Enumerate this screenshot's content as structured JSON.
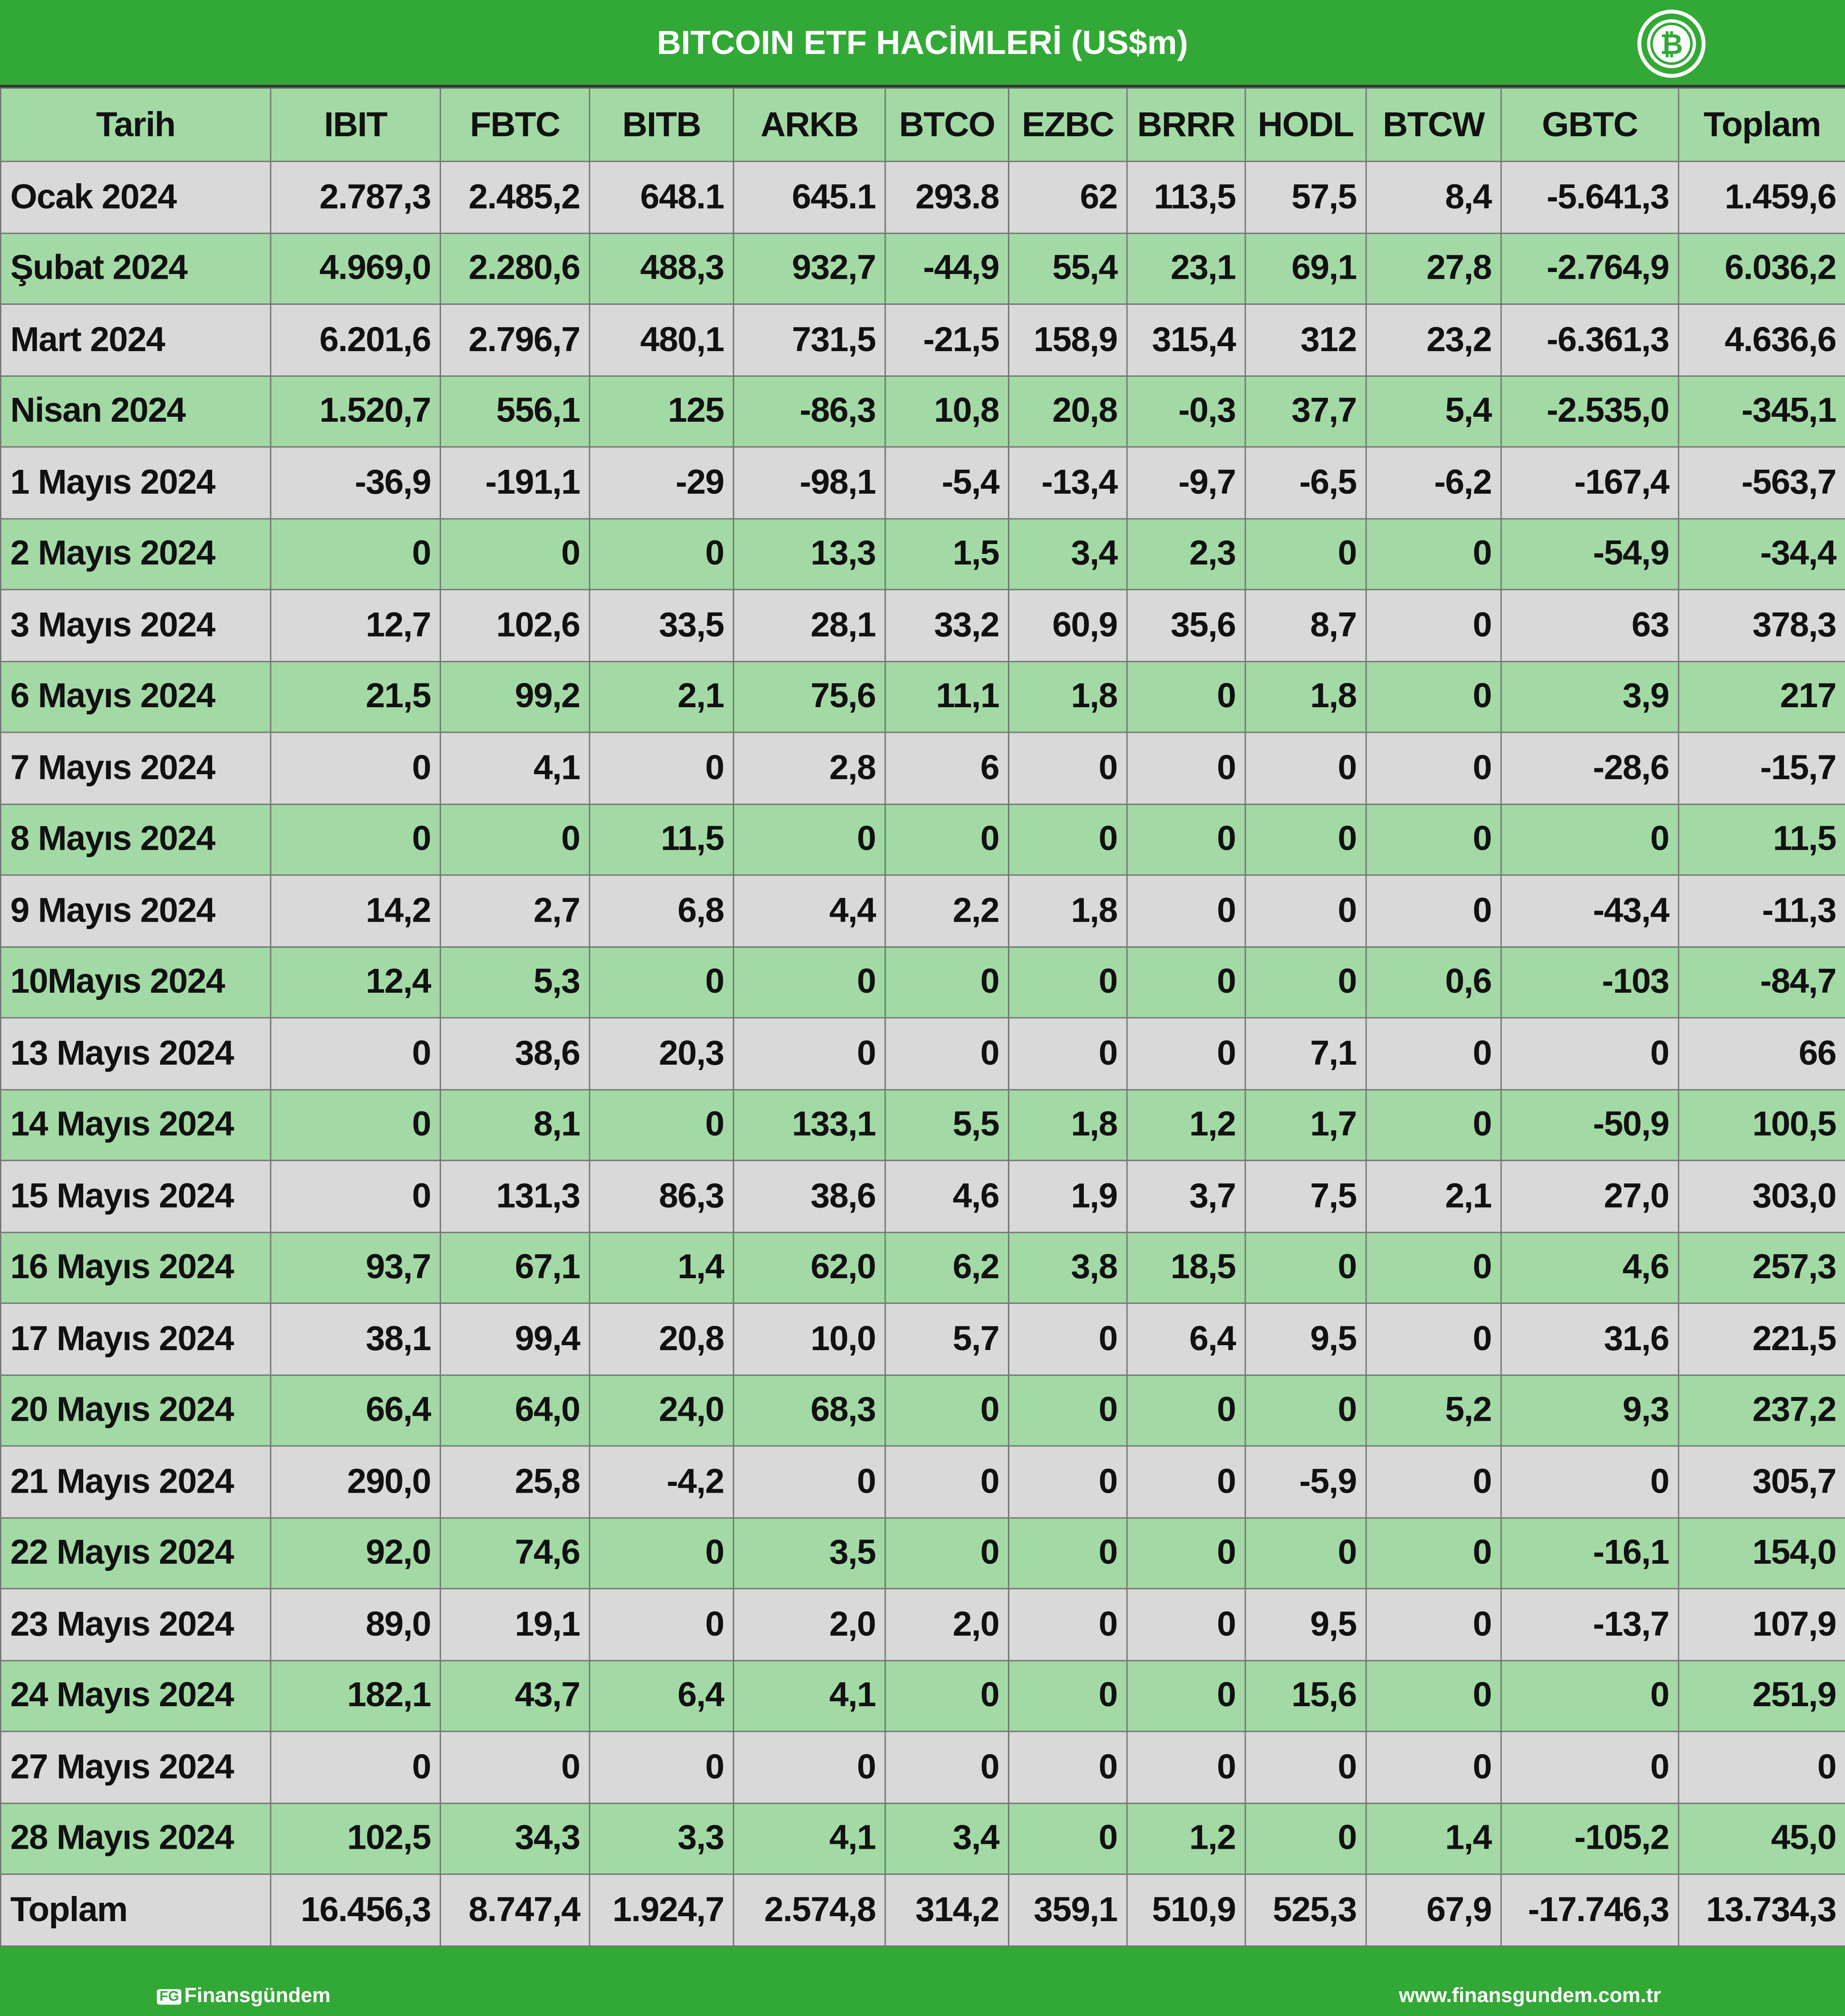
{
  "title": "BITCOIN ETF HACİMLERİ (US$m)",
  "icon": "bitcoin-icon",
  "colors": {
    "header_green": "#32a936",
    "row_green": "#a3d9a5",
    "row_gray": "#d9d9d9"
  },
  "columns": [
    "Tarih",
    "IBIT",
    "FBTC",
    "BITB",
    "ARKB",
    "BTCO",
    "EZBC",
    "BRRR",
    "HODL",
    "BTCW",
    "GBTC",
    "Toplam"
  ],
  "rows": [
    [
      "Ocak 2024",
      "2.787,3",
      "2.485,2",
      "648.1",
      "645.1",
      "293.8",
      "62",
      "113,5",
      "57,5",
      "8,4",
      "-5.641,3",
      "1.459,6"
    ],
    [
      "Şubat 2024",
      "4.969,0",
      "2.280,6",
      "488,3",
      "932,7",
      "-44,9",
      "55,4",
      "23,1",
      "69,1",
      "27,8",
      "-2.764,9",
      "6.036,2"
    ],
    [
      "Mart 2024",
      "6.201,6",
      "2.796,7",
      "480,1",
      "731,5",
      "-21,5",
      "158,9",
      "315,4",
      "312",
      "23,2",
      "-6.361,3",
      "4.636,6"
    ],
    [
      "Nisan 2024",
      "1.520,7",
      "556,1",
      "125",
      "-86,3",
      "10,8",
      "20,8",
      "-0,3",
      "37,7",
      "5,4",
      "-2.535,0",
      "-345,1"
    ],
    [
      "1 Mayıs 2024",
      "-36,9",
      "-191,1",
      "-29",
      "-98,1",
      "-5,4",
      "-13,4",
      "-9,7",
      "-6,5",
      "-6,2",
      "-167,4",
      "-563,7"
    ],
    [
      "2 Mayıs 2024",
      "0",
      "0",
      "0",
      "13,3",
      "1,5",
      "3,4",
      "2,3",
      "0",
      "0",
      "-54,9",
      "-34,4"
    ],
    [
      "3 Mayıs 2024",
      "12,7",
      "102,6",
      "33,5",
      "28,1",
      "33,2",
      "60,9",
      "35,6",
      "8,7",
      "0",
      "63",
      "378,3"
    ],
    [
      "6 Mayıs 2024",
      "21,5",
      "99,2",
      "2,1",
      "75,6",
      "11,1",
      "1,8",
      "0",
      "1,8",
      "0",
      "3,9",
      "217"
    ],
    [
      "7 Mayıs 2024",
      "0",
      "4,1",
      "0",
      "2,8",
      "6",
      "0",
      "0",
      "0",
      "0",
      "-28,6",
      "-15,7"
    ],
    [
      "8 Mayıs 2024",
      "0",
      "0",
      "11,5",
      "0",
      "0",
      "0",
      "0",
      "0",
      "0",
      "0",
      "11,5"
    ],
    [
      "9 Mayıs 2024",
      "14,2",
      "2,7",
      "6,8",
      "4,4",
      "2,2",
      "1,8",
      "0",
      "0",
      "0",
      "-43,4",
      "-11,3"
    ],
    [
      " 10Mayıs 2024",
      "12,4",
      "5,3",
      "0",
      "0",
      "0",
      "0",
      "0",
      "0",
      "0,6",
      "-103",
      "-84,7"
    ],
    [
      "13 Mayıs 2024",
      "0",
      "38,6",
      "20,3",
      "0",
      "0",
      "0",
      "0",
      "7,1",
      "0",
      "0",
      "66"
    ],
    [
      "14 Mayıs 2024",
      "0",
      "8,1",
      "0",
      "133,1",
      "5,5",
      "1,8",
      "1,2",
      "1,7",
      "0",
      "-50,9",
      "100,5"
    ],
    [
      "15 Mayıs 2024",
      "0",
      "131,3",
      "86,3",
      "38,6",
      "4,6",
      "1,9",
      "3,7",
      "7,5",
      "2,1",
      "27,0",
      "303,0"
    ],
    [
      "16 Mayıs 2024",
      "93,7",
      "67,1",
      "1,4",
      "62,0",
      "6,2",
      "3,8",
      "18,5",
      "0",
      "0",
      "4,6",
      "257,3"
    ],
    [
      "17 Mayıs 2024",
      "38,1",
      "99,4",
      "20,8",
      "10,0",
      "5,7",
      "0",
      "6,4",
      "9,5",
      "0",
      "31,6",
      "221,5"
    ],
    [
      "20 Mayıs 2024",
      "66,4",
      "64,0",
      "24,0",
      "68,3",
      "0",
      "0",
      "0",
      "0",
      "5,2",
      "9,3",
      "237,2"
    ],
    [
      "21 Mayıs 2024",
      "290,0",
      "25,8",
      "-4,2",
      "0",
      "0",
      "0",
      "0",
      "-5,9",
      "0",
      "0",
      "305,7"
    ],
    [
      "22 Mayıs 2024",
      "92,0",
      "74,6",
      "0",
      "3,5",
      "0",
      "0",
      "0",
      "0",
      "0",
      "-16,1",
      "154,0"
    ],
    [
      "23 Mayıs 2024",
      "89,0",
      "19,1",
      "0",
      "2,0",
      "2,0",
      "0",
      "0",
      "9,5",
      "0",
      "-13,7",
      "107,9"
    ],
    [
      "24 Mayıs 2024",
      "182,1",
      "43,7",
      "6,4",
      "4,1",
      "0",
      "0",
      "0",
      "15,6",
      "0",
      "0",
      "251,9"
    ],
    [
      "27 Mayıs 2024",
      "0",
      "0",
      "0",
      "0",
      "0",
      "0",
      "0",
      "0",
      "0",
      "0",
      "0"
    ],
    [
      "28 Mayıs 2024",
      "102,5",
      "34,3",
      "3,3",
      "4,1",
      "3,4",
      "0",
      "1,2",
      "0",
      "1,4",
      "-105,2",
      "45,0"
    ],
    [
      "Toplam",
      "16.456,3",
      "8.747,4",
      "1.924,7",
      "2.574,8",
      "314,2",
      "359,1",
      "510,9",
      "525,3",
      "67,9",
      "-17.746,3",
      "13.734,3"
    ]
  ],
  "footer": {
    "logo_text": "Finansgündem",
    "logo_badge": "FG",
    "website": "www.finansgundem.com.tr"
  }
}
